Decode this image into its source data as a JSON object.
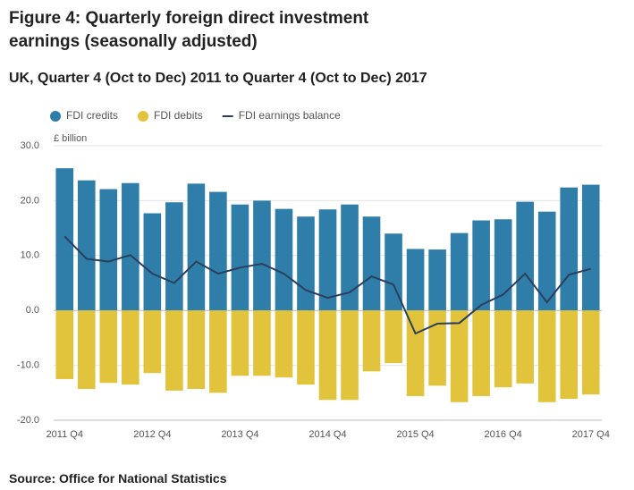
{
  "chart_data": {
    "type": "bar",
    "title": "Figure 4: Quarterly foreign direct investment earnings (seasonally adjusted)",
    "subtitle": "UK, Quarter 4 (Oct to Dec) 2011 to Quarter 4 (Oct to Dec) 2017",
    "y_label": "£ billion",
    "source": "Source: Office for National Statistics",
    "categories": [
      "2011 Q4",
      null,
      null,
      null,
      "2012 Q4",
      null,
      null,
      null,
      "2013 Q4",
      null,
      null,
      null,
      "2014 Q4",
      null,
      null,
      null,
      "2015 Q4",
      null,
      null,
      null,
      "2016 Q4",
      null,
      null,
      null,
      "2017 Q4"
    ],
    "series": [
      {
        "name": "FDI credits",
        "color": "#2f7ea9",
        "type": "bar",
        "values": [
          25.9,
          23.7,
          22.1,
          23.2,
          17.7,
          19.7,
          23.1,
          21.6,
          19.3,
          20.0,
          18.5,
          17.1,
          18.4,
          19.3,
          17.1,
          14.0,
          11.2,
          11.1,
          14.1,
          16.4,
          16.6,
          19.8,
          18.0,
          22.4,
          22.9
        ]
      },
      {
        "name": "FDI debits",
        "color": "#e2c33c",
        "type": "bar",
        "values": [
          -12.5,
          -14.3,
          -13.2,
          -13.5,
          -11.4,
          -14.6,
          -14.3,
          -15.0,
          -11.9,
          -11.9,
          -12.2,
          -13.5,
          -16.3,
          -16.3,
          -11.1,
          -9.6,
          -15.6,
          -13.7,
          -16.7,
          -15.6,
          -14.0,
          -13.3,
          -16.7,
          -16.1,
          -15.3
        ]
      },
      {
        "name": "FDI earnings balance",
        "color": "#2b3f5c",
        "type": "line",
        "values": [
          13.5,
          9.4,
          8.9,
          10.1,
          6.7,
          5.0,
          8.9,
          6.7,
          7.8,
          8.5,
          6.7,
          3.7,
          2.3,
          3.3,
          6.2,
          4.7,
          -4.2,
          -2.4,
          -2.3,
          1.0,
          2.9,
          6.7,
          1.5,
          6.5,
          7.6
        ]
      }
    ],
    "ylim": [
      -20,
      30
    ],
    "yticks": [
      {
        "value": -20,
        "label": "-20.0"
      },
      {
        "value": -10,
        "label": "-10.0"
      },
      {
        "value": 0,
        "label": "0.0"
      },
      {
        "value": 10,
        "label": "10.0"
      },
      {
        "value": 20,
        "label": "20.0"
      },
      {
        "value": 30,
        "label": "30.0"
      }
    ],
    "grid": true
  }
}
